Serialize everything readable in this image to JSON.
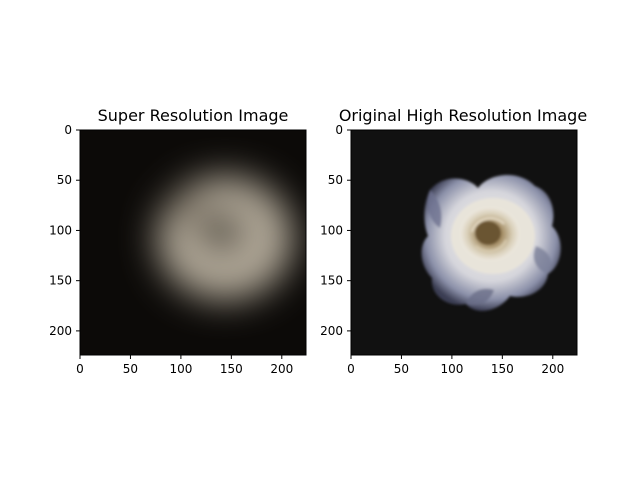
{
  "figure": {
    "background": "#ffffff",
    "axis_color": "#000000"
  },
  "chart_data": [
    {
      "type": "heatmap",
      "title": "Super Resolution Image",
      "content": "blurred-rose-image",
      "xlim": [
        0,
        224
      ],
      "ylim": [
        224,
        0
      ],
      "xticks": [
        0,
        50,
        100,
        150,
        200
      ],
      "yticks": [
        0,
        50,
        100,
        150,
        200
      ],
      "colors": {
        "background": "#0c0a08",
        "glow": "#b3aa9a",
        "shadow": "#3a342c"
      }
    },
    {
      "type": "heatmap",
      "title": "Original High Resolution Image",
      "content": "white-rose-image",
      "xlim": [
        0,
        224
      ],
      "ylim": [
        224,
        0
      ],
      "xticks": [
        0,
        50,
        100,
        150,
        200
      ],
      "yticks": [
        0,
        50,
        100,
        150,
        200
      ],
      "colors": {
        "background": "#111111",
        "petal": "#eeeeea",
        "petal_shade": "#8c90a8",
        "center": "#9a8360"
      }
    }
  ]
}
